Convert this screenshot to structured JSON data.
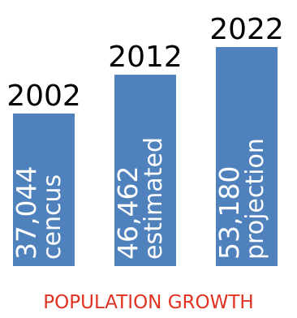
{
  "chart_data": {
    "type": "bar",
    "categories": [
      "2002",
      "2012",
      "2022"
    ],
    "values": [
      37044,
      46462,
      53180
    ],
    "value_labels": [
      "37,044",
      "46,462",
      "53,180"
    ],
    "descriptors": [
      "cencus",
      "estimated",
      "projection"
    ],
    "title": "POPULATION GROWTH",
    "xlabel": "",
    "ylabel": "",
    "grid": false,
    "legend": "none"
  },
  "colors": {
    "bar": "#4f81bd",
    "bar_text": "#ffffff",
    "year_text": "#000000",
    "title": "#e03121"
  }
}
